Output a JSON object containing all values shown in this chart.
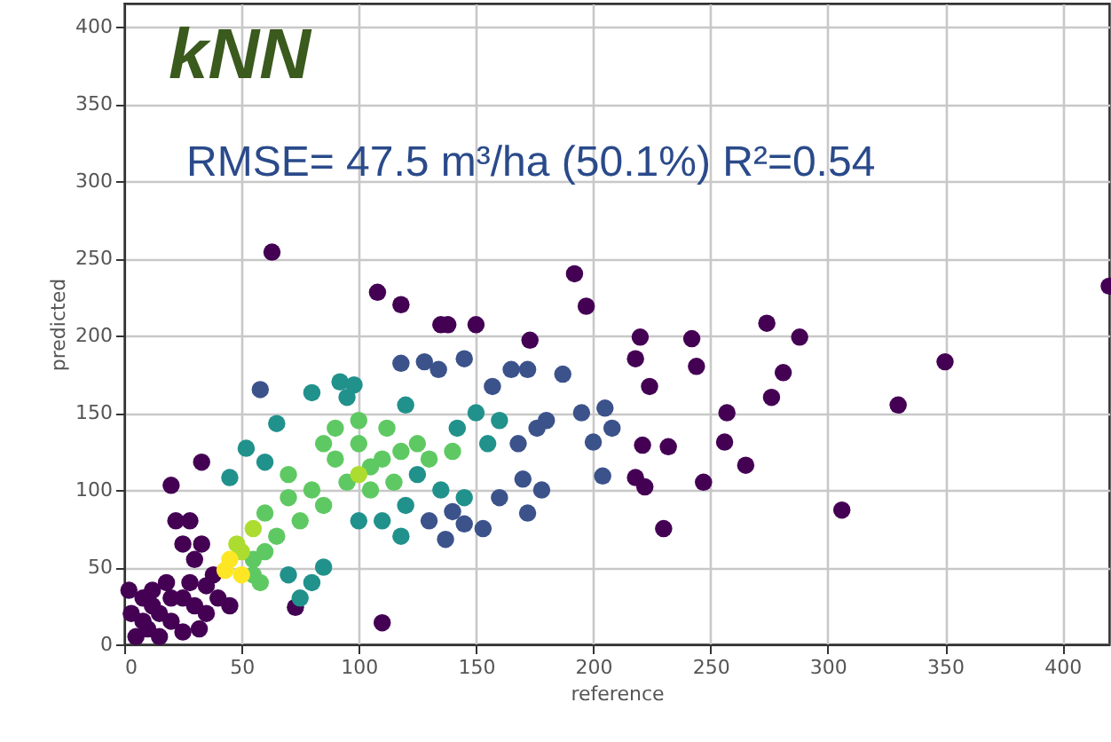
{
  "chart_data": {
    "type": "scatter",
    "xlabel": "reference",
    "ylabel": "predicted",
    "annotations": [
      "kNN",
      "RMSE= 47.5 m³/ha (50.1%) R²=0.54"
    ],
    "xlim": [
      0,
      420
    ],
    "ylim": [
      0,
      415
    ],
    "xticks": [
      0,
      50,
      100,
      150,
      200,
      250,
      300,
      350,
      400
    ],
    "yticks": [
      0,
      50,
      100,
      150,
      200,
      250,
      300,
      350,
      400
    ],
    "grid": true,
    "marker": "circle",
    "series": [
      {
        "color": "#440154",
        "x": [
          63,
          108,
          118,
          135,
          138,
          150,
          173,
          192,
          197,
          220,
          218,
          224,
          242,
          244,
          257,
          256,
          265,
          274,
          276,
          281,
          288,
          306,
          330,
          350,
          420,
          230,
          247,
          232,
          221,
          218,
          222,
          110,
          73,
          20,
          33,
          5,
          10,
          15,
          20,
          25,
          30,
          8,
          3,
          12,
          18,
          28,
          35,
          38,
          30,
          25,
          28,
          22,
          33,
          40,
          15,
          25,
          35,
          2,
          45,
          8,
          20,
          32,
          12
        ],
        "values": [
          254,
          228,
          220,
          207,
          207,
          207,
          197,
          240,
          219,
          199,
          185,
          167,
          198,
          180,
          150,
          131,
          116,
          208,
          160,
          176,
          199,
          87,
          155,
          183,
          232,
          75,
          105,
          128,
          129,
          108,
          102,
          14,
          24,
          103,
          118,
          5,
          10,
          20,
          15,
          30,
          25,
          30,
          20,
          35,
          40,
          40,
          38,
          45,
          55,
          65,
          80,
          80,
          65,
          30,
          5,
          8,
          20,
          35,
          25,
          15,
          30,
          10,
          25
        ]
      },
      {
        "color": "#3b528b",
        "x": [
          204,
          200,
          208,
          205,
          195,
          187,
          172,
          165,
          145,
          118,
          128,
          134,
          157,
          170,
          178,
          172,
          160,
          153,
          145,
          137,
          140,
          130,
          180,
          176,
          168,
          58
        ],
        "values": [
          109,
          131,
          140,
          153,
          150,
          175,
          178,
          178,
          185,
          182,
          183,
          178,
          167,
          107,
          100,
          85,
          95,
          75,
          78,
          68,
          86,
          80,
          145,
          140,
          130,
          165
        ]
      },
      {
        "color": "#21918c",
        "x": [
          80,
          92,
          98,
          95,
          65,
          52,
          45,
          60,
          120,
          142,
          150,
          160,
          155,
          120,
          118,
          110,
          125,
          75,
          80,
          85,
          70,
          135,
          145,
          100
        ],
        "values": [
          163,
          170,
          168,
          160,
          143,
          127,
          108,
          118,
          155,
          140,
          150,
          145,
          130,
          90,
          70,
          80,
          110,
          30,
          40,
          50,
          45,
          100,
          95,
          80
        ]
      },
      {
        "color": "#5ec962",
        "x": [
          70,
          80,
          90,
          100,
          105,
          110,
          95,
          85,
          75,
          65,
          60,
          55,
          60,
          90,
          100,
          112,
          118,
          125,
          130,
          140,
          85,
          70,
          105,
          115,
          55,
          58
        ],
        "values": [
          110,
          100,
          120,
          130,
          115,
          120,
          105,
          90,
          80,
          70,
          60,
          55,
          85,
          140,
          145,
          140,
          125,
          130,
          120,
          125,
          130,
          95,
          100,
          105,
          45,
          40
        ]
      },
      {
        "color": "#addc30",
        "x": [
          50,
          48,
          55,
          100
        ],
        "values": [
          60,
          65,
          75,
          110
        ]
      },
      {
        "color": "#fde725",
        "x": [
          45,
          43,
          50
        ],
        "values": [
          55,
          48,
          45
        ]
      }
    ]
  }
}
